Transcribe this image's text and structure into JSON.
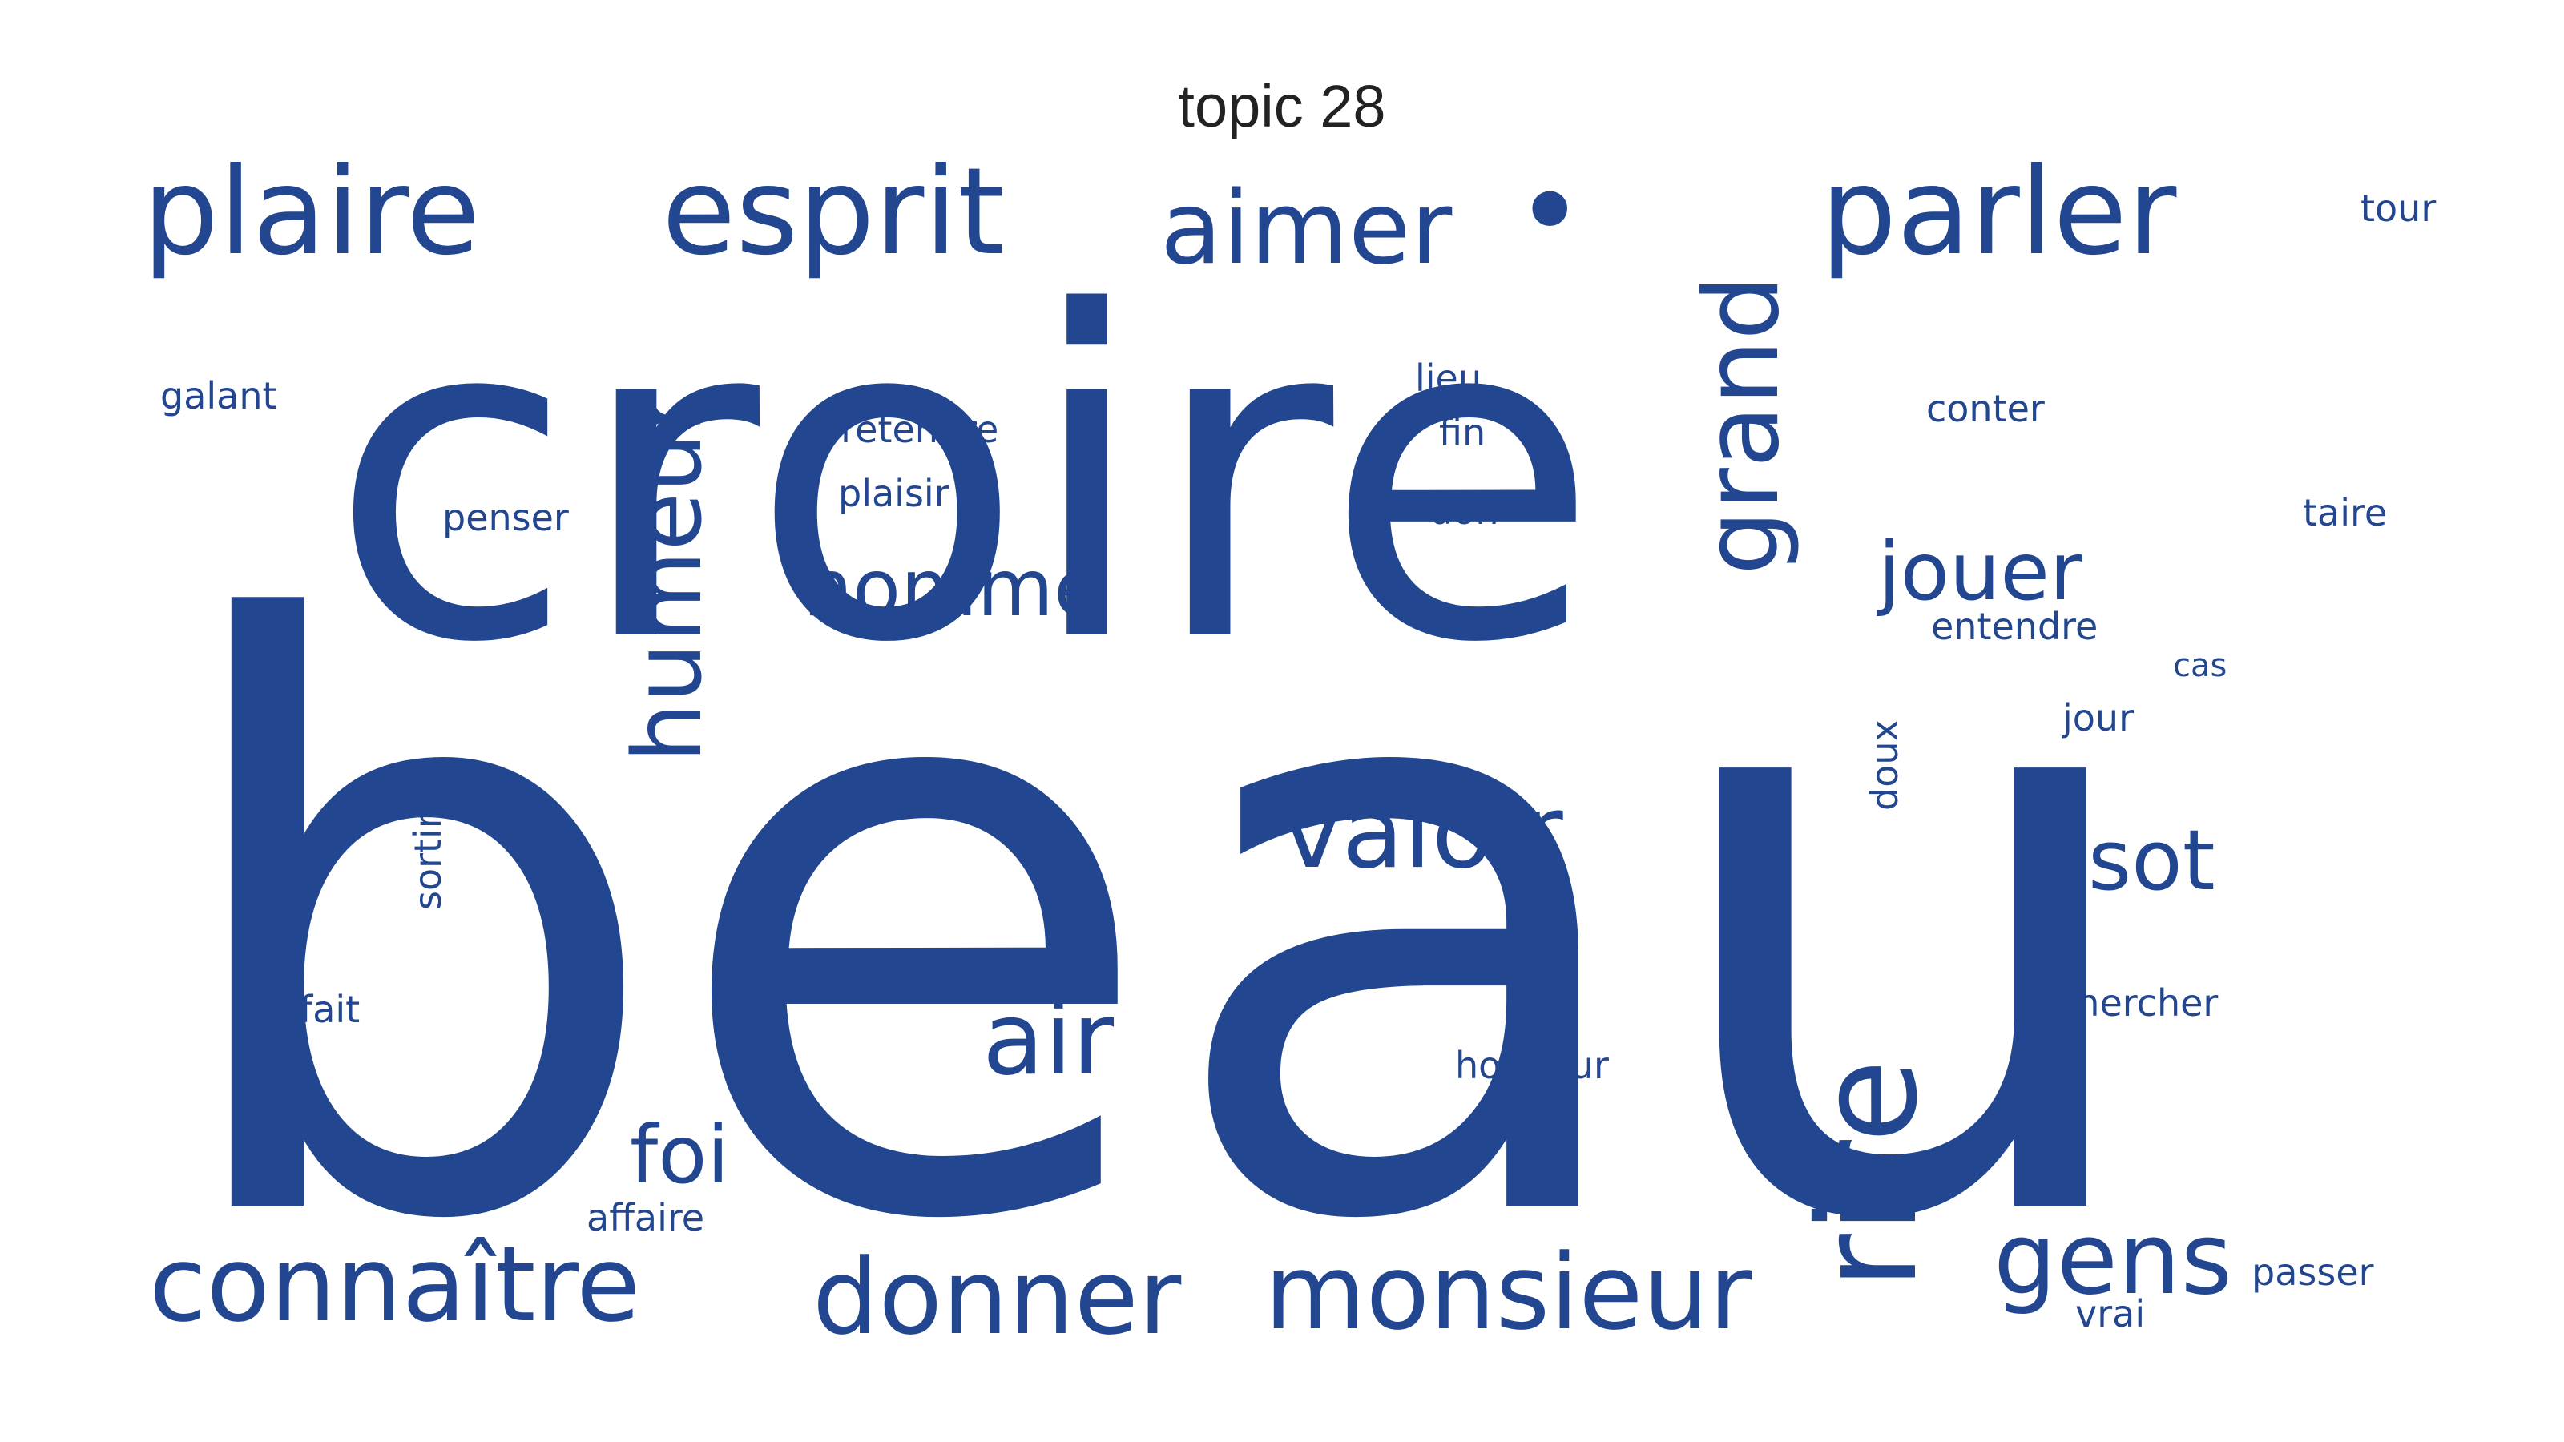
{
  "title": "topic 28",
  "colors": {
    "word": "#22468f",
    "background": "#ffffff",
    "title": "#222222"
  },
  "words": [
    {
      "text": "beau",
      "weight": 100
    },
    {
      "text": "croire",
      "weight": 72
    },
    {
      "text": "plaire",
      "weight": 16
    },
    {
      "text": "esprit",
      "weight": 16
    },
    {
      "text": "parler",
      "weight": 16
    },
    {
      "text": "aimer",
      "weight": 14
    },
    {
      "text": "•",
      "weight": 14
    },
    {
      "text": "grand",
      "weight": 14
    },
    {
      "text": "humeur",
      "weight": 14
    },
    {
      "text": "rire",
      "weight": 18
    },
    {
      "text": "valoir",
      "weight": 14
    },
    {
      "text": "air",
      "weight": 14
    },
    {
      "text": "homme",
      "weight": 12
    },
    {
      "text": "jouer",
      "weight": 12
    },
    {
      "text": "sot",
      "weight": 12
    },
    {
      "text": "foi",
      "weight": 12
    },
    {
      "text": "connaître",
      "weight": 16
    },
    {
      "text": "donner",
      "weight": 16
    },
    {
      "text": "monsieur",
      "weight": 16
    },
    {
      "text": "gens",
      "weight": 15
    },
    {
      "text": "galant",
      "weight": 5
    },
    {
      "text": "prétendre",
      "weight": 5
    },
    {
      "text": "plaisir",
      "weight": 5
    },
    {
      "text": "penser",
      "weight": 5
    },
    {
      "text": "lieu",
      "weight": 5
    },
    {
      "text": "fin",
      "weight": 5
    },
    {
      "text": "don",
      "weight": 5
    },
    {
      "text": "tour",
      "weight": 5
    },
    {
      "text": "conter",
      "weight": 5
    },
    {
      "text": "taire",
      "weight": 5
    },
    {
      "text": "entendre",
      "weight": 5
    },
    {
      "text": "cas",
      "weight": 4
    },
    {
      "text": "jour",
      "weight": 5
    },
    {
      "text": "doux",
      "weight": 5
    },
    {
      "text": "sortir",
      "weight": 5
    },
    {
      "text": "fait",
      "weight": 5
    },
    {
      "text": "chercher",
      "weight": 5
    },
    {
      "text": "honneur",
      "weight": 5
    },
    {
      "text": "affaire",
      "weight": 5
    },
    {
      "text": "passer",
      "weight": 5
    },
    {
      "text": "vrai",
      "weight": 5
    }
  ]
}
